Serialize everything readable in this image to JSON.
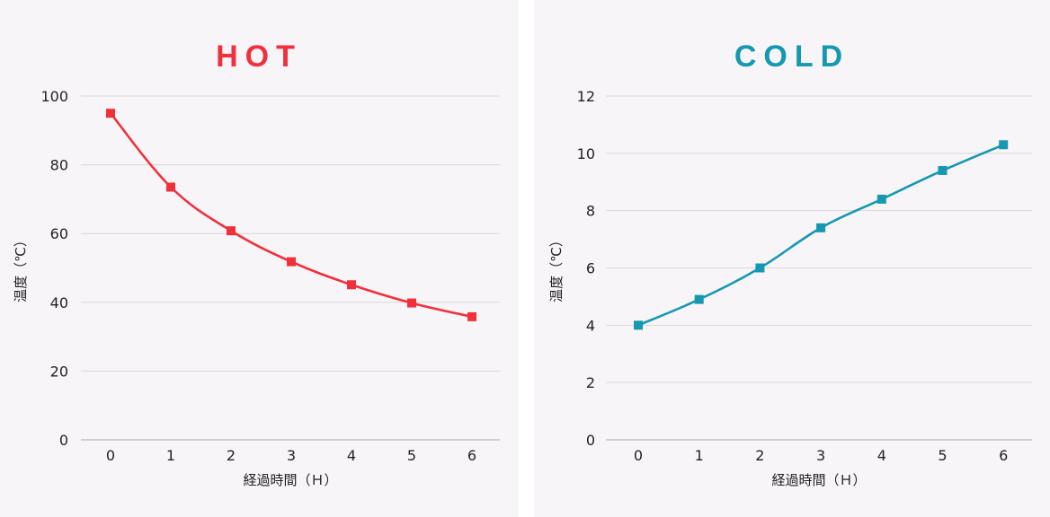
{
  "chart_data": [
    {
      "id": "hot",
      "type": "line",
      "title": "HOT",
      "color": "#f0313b",
      "xlabel": "経過時間（Ｈ）",
      "ylabel": "温度（℃）",
      "categories": [
        "0",
        "1",
        "2",
        "3",
        "4",
        "5",
        "6"
      ],
      "x": [
        0,
        1,
        2,
        3,
        4,
        5,
        6
      ],
      "series": [
        {
          "name": "HOT",
          "values": [
            95,
            73.5,
            60.8,
            51.8,
            45.1,
            39.8,
            35.8
          ]
        }
      ],
      "yticks": [
        "0",
        "20",
        "40",
        "60",
        "80",
        "100"
      ],
      "ytick_values": [
        0,
        20,
        40,
        60,
        80,
        100
      ],
      "ylim": [
        0,
        100
      ],
      "grid": true,
      "smooth": true
    },
    {
      "id": "cold",
      "type": "line",
      "title": "COLD",
      "color": "#1598b0",
      "xlabel": "経過時間（Ｈ）",
      "ylabel": "温度（℃）",
      "categories": [
        "0",
        "1",
        "2",
        "3",
        "4",
        "5",
        "6"
      ],
      "x": [
        0,
        1,
        2,
        3,
        4,
        5,
        6
      ],
      "series": [
        {
          "name": "COLD",
          "values": [
            4.0,
            4.9,
            6.0,
            7.4,
            8.4,
            9.4,
            10.3
          ]
        }
      ],
      "yticks": [
        "0",
        "2",
        "4",
        "6",
        "8",
        "10",
        "12"
      ],
      "ytick_values": [
        0,
        2,
        4,
        6,
        8,
        10,
        12
      ],
      "ylim": [
        0,
        12
      ],
      "grid": true,
      "smooth": true
    }
  ]
}
